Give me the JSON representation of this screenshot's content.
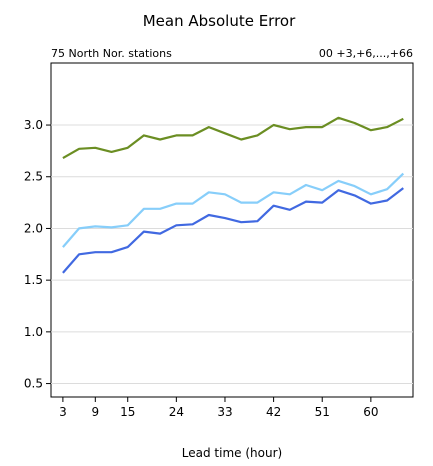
{
  "chart_data": {
    "type": "line",
    "title": "Mean Absolute Error",
    "subtitle_left": "75 North Nor. stations",
    "subtitle_right": "00 +3,+6,...,+66",
    "xlabel": "Lead time (hour)",
    "ylabel": "",
    "x": [
      3,
      6,
      9,
      12,
      15,
      18,
      21,
      24,
      27,
      30,
      33,
      36,
      39,
      42,
      45,
      48,
      51,
      54,
      57,
      60,
      63,
      66
    ],
    "xticks": [
      3,
      9,
      15,
      24,
      33,
      42,
      51,
      60
    ],
    "yticks": [
      "0.5",
      "1.0",
      "1.5",
      "2.0",
      "2.5",
      "3.0"
    ],
    "xlim": [
      0.8,
      67.8
    ],
    "ylim": [
      0.37,
      3.6
    ],
    "grid": true,
    "series": [
      {
        "color": "#6b8e23",
        "values": [
          2.68,
          2.77,
          2.78,
          2.74,
          2.78,
          2.9,
          2.86,
          2.9,
          2.9,
          2.98,
          2.92,
          2.86,
          2.9,
          3.0,
          2.96,
          2.98,
          2.98,
          3.07,
          3.02,
          2.95,
          2.98,
          3.06
        ]
      },
      {
        "color": "#87cefa",
        "values": [
          1.82,
          2.0,
          2.02,
          2.01,
          2.03,
          2.19,
          2.19,
          2.24,
          2.24,
          2.35,
          2.33,
          2.25,
          2.25,
          2.35,
          2.33,
          2.42,
          2.37,
          2.46,
          2.41,
          2.33,
          2.38,
          2.53
        ]
      },
      {
        "color": "#4169e1",
        "values": [
          1.57,
          1.75,
          1.77,
          1.77,
          1.82,
          1.97,
          1.95,
          2.03,
          2.04,
          2.13,
          2.1,
          2.06,
          2.07,
          2.22,
          2.18,
          2.26,
          2.25,
          2.37,
          2.32,
          2.24,
          2.27,
          2.39
        ]
      }
    ]
  }
}
